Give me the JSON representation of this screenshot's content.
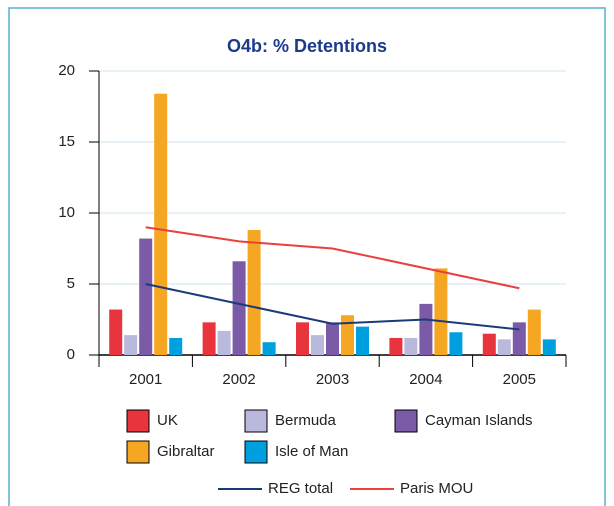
{
  "chart_data": {
    "type": "bar",
    "title": "O4b: % Detentions",
    "categories": [
      "2001",
      "2002",
      "2003",
      "2004",
      "2005"
    ],
    "ylim": [
      0,
      20
    ],
    "yticks": [
      0,
      5,
      10,
      15,
      20
    ],
    "grid": true,
    "series": [
      {
        "name": "UK",
        "color": "#e8343c",
        "values": [
          3.2,
          2.3,
          2.3,
          1.2,
          1.5
        ]
      },
      {
        "name": "Bermuda",
        "color": "#b9b9dd",
        "values": [
          1.4,
          1.7,
          1.4,
          1.2,
          1.1
        ]
      },
      {
        "name": "Cayman Islands",
        "color": "#7b5aa8",
        "values": [
          8.2,
          6.6,
          2.3,
          3.6,
          2.3
        ]
      },
      {
        "name": "Gibraltar",
        "color": "#f5a623",
        "values": [
          18.4,
          8.8,
          2.8,
          6.1,
          3.2
        ]
      },
      {
        "name": "Isle of Man",
        "color": "#00a0e0",
        "values": [
          1.2,
          0.9,
          2.0,
          1.6,
          1.1
        ]
      },
      {
        "name": "REG total",
        "type": "line",
        "color": "#1b3a7a",
        "values": [
          5.0,
          3.6,
          2.2,
          2.5,
          1.8
        ]
      },
      {
        "name": "Paris MOU",
        "type": "line",
        "color": "#e8403c",
        "values": [
          9.0,
          8.0,
          7.5,
          6.1,
          4.7
        ]
      }
    ]
  }
}
